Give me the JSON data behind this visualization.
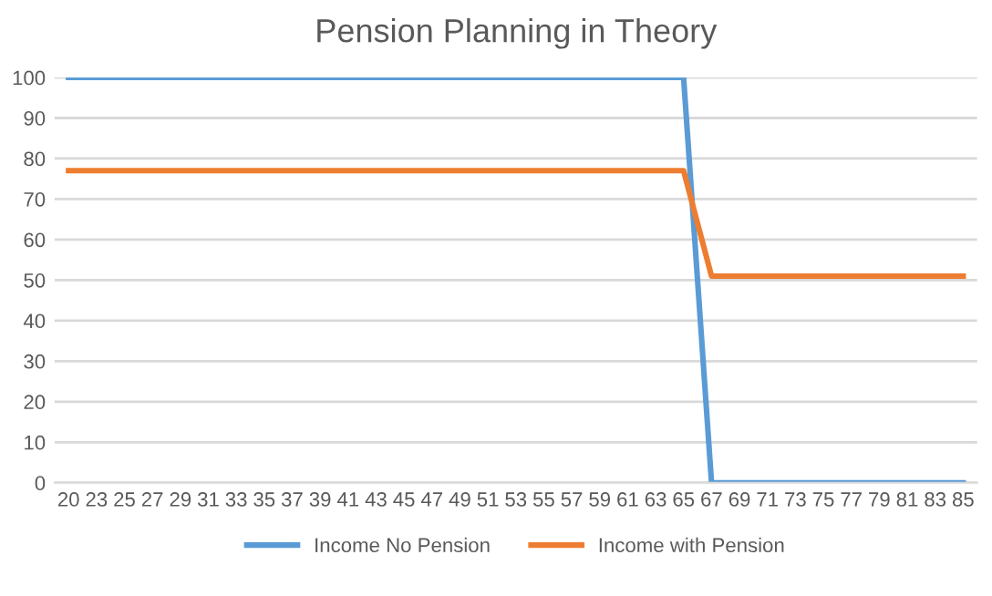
{
  "chart_data": {
    "type": "line",
    "title": "Pension Planning in Theory",
    "categories": [
      "20",
      "23",
      "25",
      "27",
      "29",
      "31",
      "33",
      "35",
      "37",
      "39",
      "41",
      "43",
      "45",
      "47",
      "49",
      "51",
      "53",
      "55",
      "57",
      "59",
      "61",
      "63",
      "65",
      "67",
      "69",
      "71",
      "73",
      "75",
      "77",
      "79",
      "81",
      "83",
      "85"
    ],
    "series": [
      {
        "name": "Income No Pension",
        "color": "#5b9bd5",
        "values": [
          100,
          100,
          100,
          100,
          100,
          100,
          100,
          100,
          100,
          100,
          100,
          100,
          100,
          100,
          100,
          100,
          100,
          100,
          100,
          100,
          100,
          100,
          100,
          0,
          0,
          0,
          0,
          0,
          0,
          0,
          0,
          0,
          0
        ]
      },
      {
        "name": "Income with Pension",
        "color": "#ed7d31",
        "values": [
          77,
          77,
          77,
          77,
          77,
          77,
          77,
          77,
          77,
          77,
          77,
          77,
          77,
          77,
          77,
          77,
          77,
          77,
          77,
          77,
          77,
          77,
          77,
          51,
          51,
          51,
          51,
          51,
          51,
          51,
          51,
          51,
          51
        ]
      }
    ],
    "ylim": [
      0,
      100
    ],
    "yticks": [
      0,
      10,
      20,
      30,
      40,
      50,
      60,
      70,
      80,
      90,
      100
    ],
    "grid": "y",
    "legend": "bottom",
    "marker": "none",
    "line_style": "solid"
  }
}
